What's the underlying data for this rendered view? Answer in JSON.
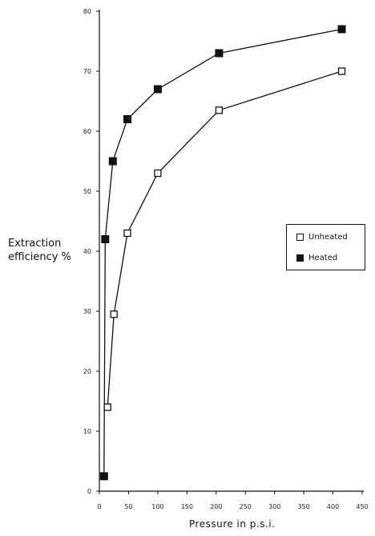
{
  "chart_data": {
    "type": "line",
    "xlabel": "Pressure in p.s.i.",
    "ylabel_lines": [
      "Extraction",
      "efficiency %"
    ],
    "xlim": [
      0,
      450
    ],
    "ylim": [
      0,
      80
    ],
    "x_ticks": [
      0,
      50,
      100,
      150,
      200,
      250,
      300,
      350,
      400,
      450
    ],
    "y_ticks": [
      0,
      10,
      20,
      30,
      40,
      50,
      60,
      70,
      80
    ],
    "grid": false,
    "legend_position": "right",
    "series": [
      {
        "name": "Unheated",
        "marker": "open-square",
        "x": [
          14,
          25,
          48,
          100,
          205,
          415
        ],
        "y": [
          14,
          29.5,
          43,
          53,
          63.5,
          70
        ]
      },
      {
        "name": "Heated",
        "marker": "filled-square",
        "x": [
          8,
          10,
          23,
          48,
          100,
          205,
          415
        ],
        "y": [
          2.5,
          42,
          55,
          62,
          67,
          73,
          77
        ]
      }
    ]
  }
}
